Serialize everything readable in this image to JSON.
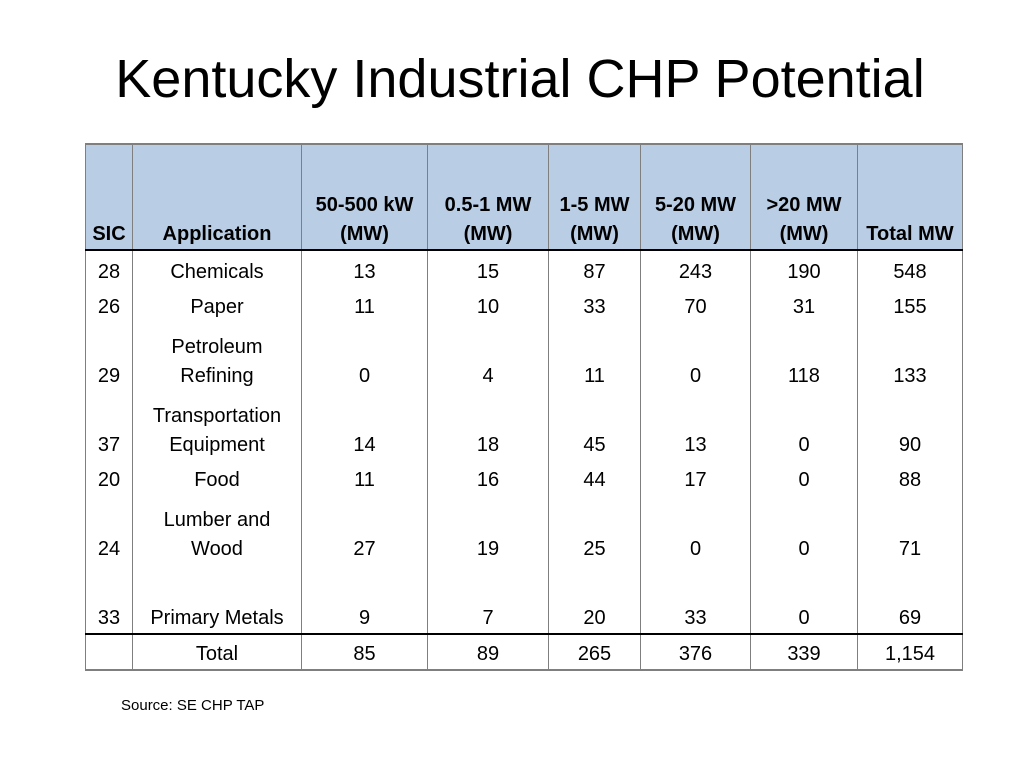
{
  "title": "Kentucky Industrial CHP Potential",
  "table": {
    "headers": [
      [
        "SIC"
      ],
      [
        "Application"
      ],
      [
        "50-500 kW",
        "(MW)"
      ],
      [
        "0.5-1 MW",
        "(MW)"
      ],
      [
        "1-5 MW",
        "(MW)"
      ],
      [
        "5-20 MW",
        "(MW)"
      ],
      [
        ">20 MW",
        "(MW)"
      ],
      [
        "Total MW"
      ]
    ],
    "rows": [
      {
        "sic": "28",
        "application": [
          "Chemicals"
        ],
        "values": [
          "13",
          "15",
          "87",
          "243",
          "190",
          "548"
        ]
      },
      {
        "sic": "26",
        "application": [
          "Paper"
        ],
        "values": [
          "11",
          "10",
          "33",
          "70",
          "31",
          "155"
        ]
      },
      {
        "sic": "29",
        "application": [
          "Petroleum",
          "Refining"
        ],
        "values": [
          "0",
          "4",
          "11",
          "0",
          "118",
          "133"
        ]
      },
      {
        "sic": "37",
        "application": [
          "Transportation",
          "Equipment"
        ],
        "values": [
          "14",
          "18",
          "45",
          "13",
          "0",
          "90"
        ]
      },
      {
        "sic": "20",
        "application": [
          "Food"
        ],
        "values": [
          "11",
          "16",
          "44",
          "17",
          "0",
          "88"
        ]
      },
      {
        "sic": "24",
        "application": [
          "Lumber and",
          "Wood"
        ],
        "values": [
          "27",
          "19",
          "25",
          "0",
          "0",
          "71"
        ]
      },
      {
        "sic": "33",
        "application": [
          "Primary Metals"
        ],
        "values": [
          "9",
          "7",
          "20",
          "33",
          "0",
          "69"
        ]
      }
    ],
    "total": {
      "sic": "",
      "label": "Total",
      "values": [
        "85",
        "89",
        "265",
        "376",
        "339",
        "1,154"
      ]
    }
  },
  "source": "Source: SE CHP TAP",
  "colors": {
    "header_fill": "#b9cde5",
    "border": "#7f7f7f"
  }
}
